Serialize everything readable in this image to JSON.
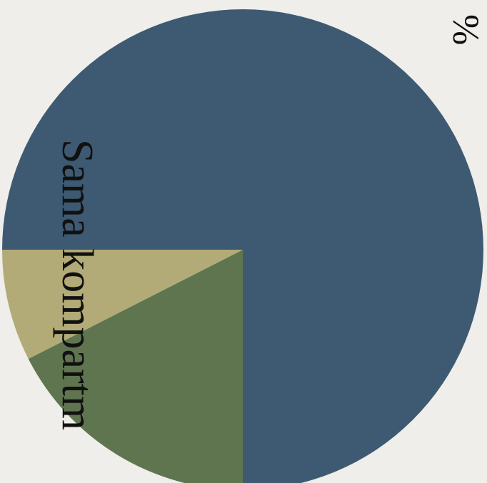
{
  "chart_data": {
    "type": "pie",
    "title": "%",
    "label": "Sama kompartm",
    "values": [
      75,
      17.5,
      7.5
    ],
    "colors": [
      "#3e5a72",
      "#5f7550",
      "#b3ab77"
    ]
  }
}
